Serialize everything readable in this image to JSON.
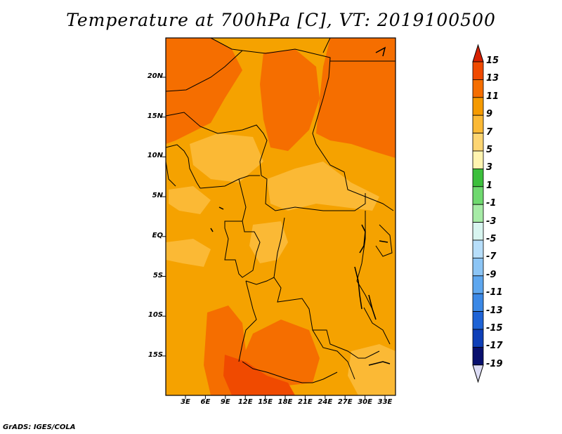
{
  "title": "Temperature at 700hPa [C], VT: 2019100500",
  "credit": "GrADS: IGES/COLA",
  "map": {
    "lat_labels": [
      "20N",
      "15N",
      "10N",
      "5N",
      "EQ",
      "5S",
      "10S",
      "15S"
    ],
    "lon_labels": [
      "3E",
      "6E",
      "9E",
      "12E",
      "15E",
      "18E",
      "21E",
      "24E",
      "27E",
      "30E",
      "33E"
    ],
    "fill_colors": {
      "base": "#f5a200",
      "warm": "#f56e00",
      "cool": "#fbb935",
      "hot": "#f04a00"
    }
  },
  "colorbar": {
    "labels": [
      "15",
      "13",
      "11",
      "9",
      "7",
      "5",
      "3",
      "1",
      "-1",
      "-3",
      "-5",
      "-7",
      "-9",
      "-11",
      "-13",
      "-15",
      "-17",
      "-19"
    ],
    "colors": [
      "#d62000",
      "#f04a00",
      "#f56e00",
      "#f59a00",
      "#fbb935",
      "#fdd572",
      "#fff4b0",
      "#3cbf3c",
      "#6fd96f",
      "#a6eba6",
      "#d8f5f0",
      "#b7defa",
      "#8cc5f5",
      "#5ea7ef",
      "#3b88e6",
      "#1e63d6",
      "#0e3fb8",
      "#08106e"
    ],
    "top_arrow_color": "#d62000",
    "bottom_arrow_color": "#dcdcf5"
  }
}
